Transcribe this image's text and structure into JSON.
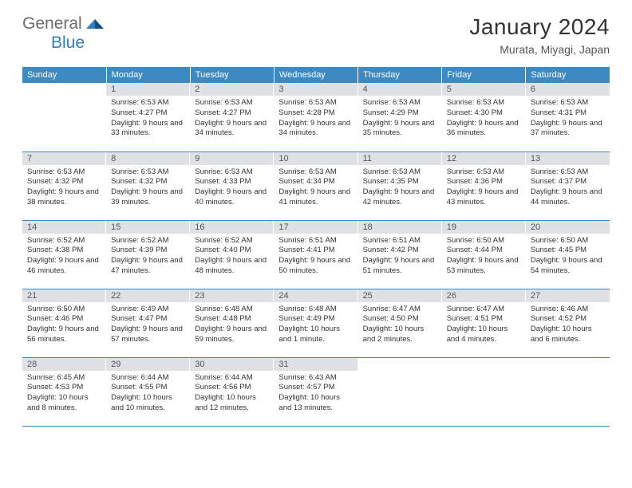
{
  "logo": {
    "part1": "General",
    "part2": "Blue"
  },
  "title": "January 2024",
  "location": "Murata, Miyagi, Japan",
  "colors": {
    "header_bg": "#3b8ac4",
    "header_fg": "#ffffff",
    "daynum_bg": "#dfe2e5",
    "daynum_fg": "#555555",
    "row_border": "#3b8ac4",
    "logo_gray": "#6b6b6b",
    "logo_blue": "#2f7ec2",
    "body_text": "#333333"
  },
  "fonts": {
    "title_size": 28,
    "location_size": 14,
    "dayhead_size": 11,
    "daynum_size": 11,
    "body_size": 9.5
  },
  "calendar": {
    "type": "table",
    "columns": [
      "Sunday",
      "Monday",
      "Tuesday",
      "Wednesday",
      "Thursday",
      "Friday",
      "Saturday"
    ],
    "weeks": [
      [
        null,
        {
          "n": 1,
          "sunrise": "6:53 AM",
          "sunset": "4:27 PM",
          "daylight": "9 hours and 33 minutes."
        },
        {
          "n": 2,
          "sunrise": "6:53 AM",
          "sunset": "4:27 PM",
          "daylight": "9 hours and 34 minutes."
        },
        {
          "n": 3,
          "sunrise": "6:53 AM",
          "sunset": "4:28 PM",
          "daylight": "9 hours and 34 minutes."
        },
        {
          "n": 4,
          "sunrise": "6:53 AM",
          "sunset": "4:29 PM",
          "daylight": "9 hours and 35 minutes."
        },
        {
          "n": 5,
          "sunrise": "6:53 AM",
          "sunset": "4:30 PM",
          "daylight": "9 hours and 36 minutes."
        },
        {
          "n": 6,
          "sunrise": "6:53 AM",
          "sunset": "4:31 PM",
          "daylight": "9 hours and 37 minutes."
        }
      ],
      [
        {
          "n": 7,
          "sunrise": "6:53 AM",
          "sunset": "4:32 PM",
          "daylight": "9 hours and 38 minutes."
        },
        {
          "n": 8,
          "sunrise": "6:53 AM",
          "sunset": "4:32 PM",
          "daylight": "9 hours and 39 minutes."
        },
        {
          "n": 9,
          "sunrise": "6:53 AM",
          "sunset": "4:33 PM",
          "daylight": "9 hours and 40 minutes."
        },
        {
          "n": 10,
          "sunrise": "6:53 AM",
          "sunset": "4:34 PM",
          "daylight": "9 hours and 41 minutes."
        },
        {
          "n": 11,
          "sunrise": "6:53 AM",
          "sunset": "4:35 PM",
          "daylight": "9 hours and 42 minutes."
        },
        {
          "n": 12,
          "sunrise": "6:53 AM",
          "sunset": "4:36 PM",
          "daylight": "9 hours and 43 minutes."
        },
        {
          "n": 13,
          "sunrise": "6:53 AM",
          "sunset": "4:37 PM",
          "daylight": "9 hours and 44 minutes."
        }
      ],
      [
        {
          "n": 14,
          "sunrise": "6:52 AM",
          "sunset": "4:38 PM",
          "daylight": "9 hours and 46 minutes."
        },
        {
          "n": 15,
          "sunrise": "6:52 AM",
          "sunset": "4:39 PM",
          "daylight": "9 hours and 47 minutes."
        },
        {
          "n": 16,
          "sunrise": "6:52 AM",
          "sunset": "4:40 PM",
          "daylight": "9 hours and 48 minutes."
        },
        {
          "n": 17,
          "sunrise": "6:51 AM",
          "sunset": "4:41 PM",
          "daylight": "9 hours and 50 minutes."
        },
        {
          "n": 18,
          "sunrise": "6:51 AM",
          "sunset": "4:42 PM",
          "daylight": "9 hours and 51 minutes."
        },
        {
          "n": 19,
          "sunrise": "6:50 AM",
          "sunset": "4:44 PM",
          "daylight": "9 hours and 53 minutes."
        },
        {
          "n": 20,
          "sunrise": "6:50 AM",
          "sunset": "4:45 PM",
          "daylight": "9 hours and 54 minutes."
        }
      ],
      [
        {
          "n": 21,
          "sunrise": "6:50 AM",
          "sunset": "4:46 PM",
          "daylight": "9 hours and 56 minutes."
        },
        {
          "n": 22,
          "sunrise": "6:49 AM",
          "sunset": "4:47 PM",
          "daylight": "9 hours and 57 minutes."
        },
        {
          "n": 23,
          "sunrise": "6:48 AM",
          "sunset": "4:48 PM",
          "daylight": "9 hours and 59 minutes."
        },
        {
          "n": 24,
          "sunrise": "6:48 AM",
          "sunset": "4:49 PM",
          "daylight": "10 hours and 1 minute."
        },
        {
          "n": 25,
          "sunrise": "6:47 AM",
          "sunset": "4:50 PM",
          "daylight": "10 hours and 2 minutes."
        },
        {
          "n": 26,
          "sunrise": "6:47 AM",
          "sunset": "4:51 PM",
          "daylight": "10 hours and 4 minutes."
        },
        {
          "n": 27,
          "sunrise": "6:46 AM",
          "sunset": "4:52 PM",
          "daylight": "10 hours and 6 minutes."
        }
      ],
      [
        {
          "n": 28,
          "sunrise": "6:45 AM",
          "sunset": "4:53 PM",
          "daylight": "10 hours and 8 minutes."
        },
        {
          "n": 29,
          "sunrise": "6:44 AM",
          "sunset": "4:55 PM",
          "daylight": "10 hours and 10 minutes."
        },
        {
          "n": 30,
          "sunrise": "6:44 AM",
          "sunset": "4:56 PM",
          "daylight": "10 hours and 12 minutes."
        },
        {
          "n": 31,
          "sunrise": "6:43 AM",
          "sunset": "4:57 PM",
          "daylight": "10 hours and 13 minutes."
        },
        null,
        null,
        null
      ]
    ],
    "labels": {
      "sunrise_prefix": "Sunrise: ",
      "sunset_prefix": "Sunset: ",
      "daylight_prefix": "Daylight: "
    }
  }
}
